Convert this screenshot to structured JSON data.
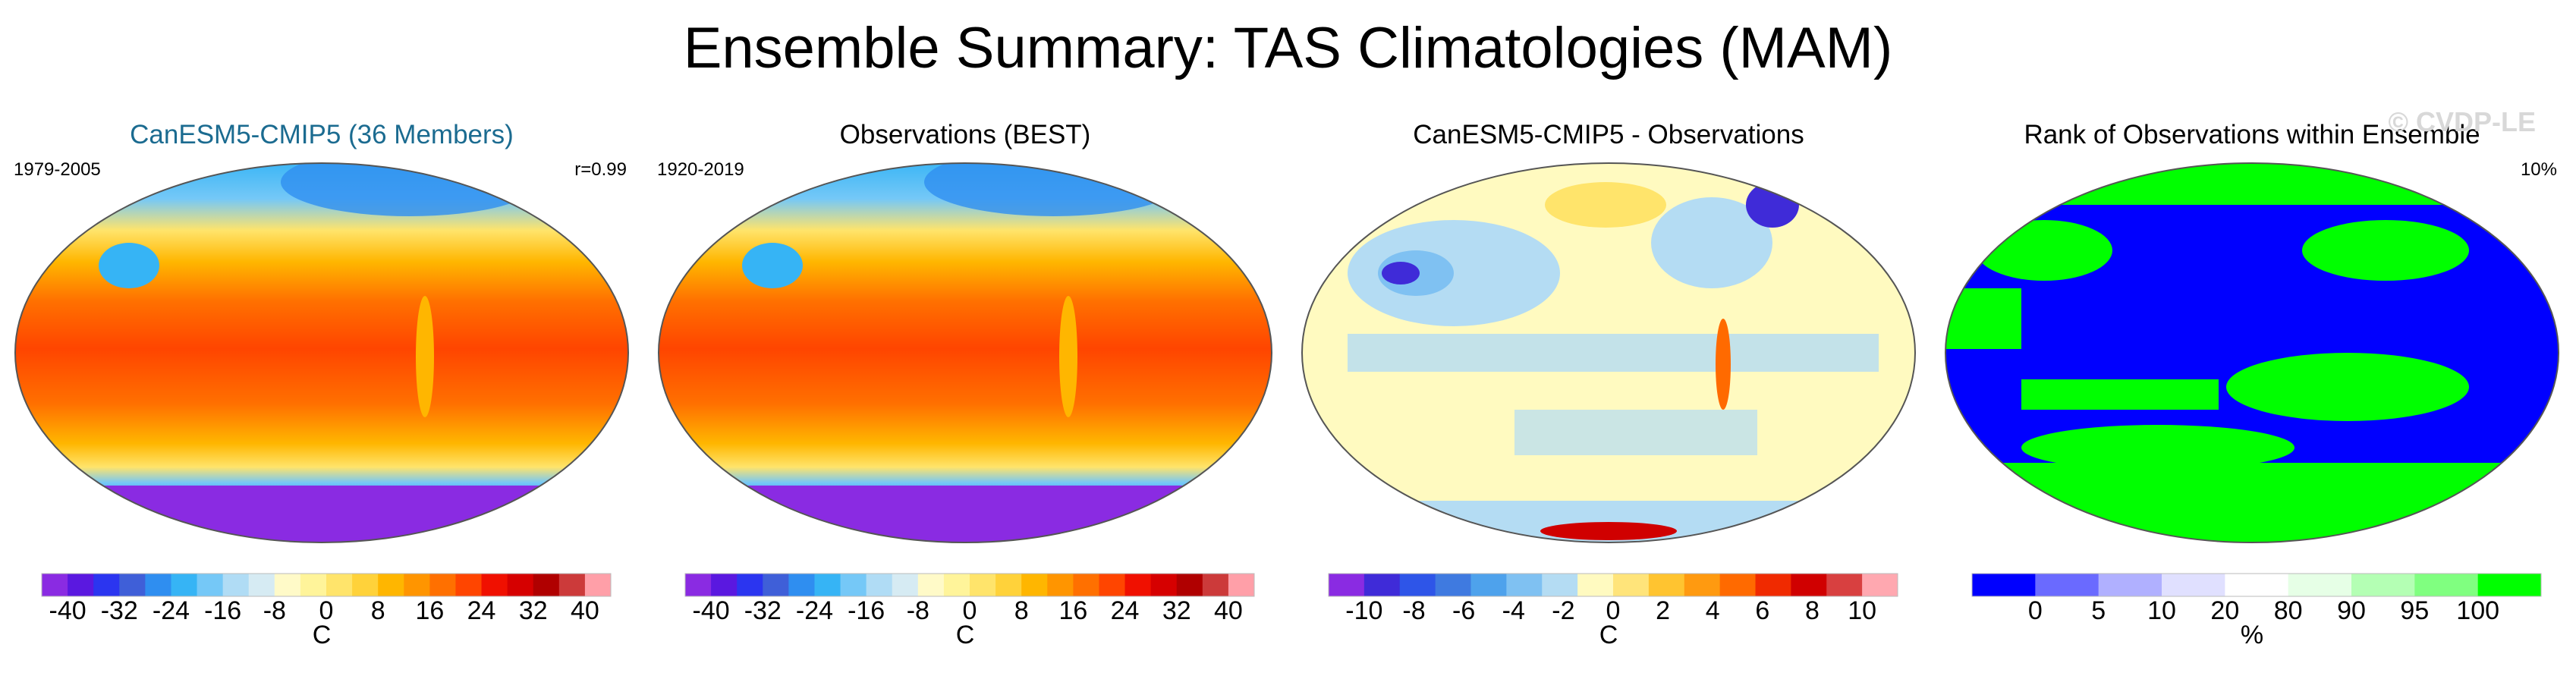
{
  "figure": {
    "title": "Ensemble Summary: TAS Climatologies (MAM)",
    "watermark": "© CVDP-LE",
    "colors": {
      "title_blue": "#1b6b90",
      "ocean_outline": "#555555"
    }
  },
  "chart_data": [
    {
      "type": "heatmap",
      "title": "CanESM5-CMIP5 (36 Members)",
      "period": "1979-2005",
      "stat": "r=0.99",
      "colorbar": {
        "label": "C",
        "ticks": [
          "-40",
          "-32",
          "-24",
          "-16",
          "-8",
          "0",
          "8",
          "16",
          "24",
          "32",
          "40"
        ],
        "range": [
          -40,
          40
        ],
        "colors": [
          "#8a2be2",
          "#5a18e0",
          "#2b35f0",
          "#3f5fd8",
          "#2f8ef0",
          "#36b4f5",
          "#75c8f7",
          "#b0dcf5",
          "#d6ebf3",
          "#fffac8",
          "#fff49a",
          "#ffe46b",
          "#ffd23a",
          "#ffb600",
          "#ff9500",
          "#ff7000",
          "#ff4500",
          "#f01000",
          "#d60000",
          "#b00000",
          "#cc3a3a",
          "#ff9fa8"
        ]
      }
    },
    {
      "type": "heatmap",
      "title": "Observations (BEST)",
      "period": "1920-2019",
      "colorbar": {
        "label": "C",
        "ticks": [
          "-40",
          "-32",
          "-24",
          "-16",
          "-8",
          "0",
          "8",
          "16",
          "24",
          "32",
          "40"
        ],
        "range": [
          -40,
          40
        ],
        "colors": [
          "#8a2be2",
          "#5a18e0",
          "#2b35f0",
          "#3f5fd8",
          "#2f8ef0",
          "#36b4f5",
          "#75c8f7",
          "#b0dcf5",
          "#d6ebf3",
          "#fffac8",
          "#fff49a",
          "#ffe46b",
          "#ffd23a",
          "#ffb600",
          "#ff9500",
          "#ff7000",
          "#ff4500",
          "#f01000",
          "#d60000",
          "#b00000",
          "#cc3a3a",
          "#ff9fa8"
        ]
      }
    },
    {
      "type": "heatmap",
      "title": "CanESM5-CMIP5 - Observations",
      "colorbar": {
        "label": "C",
        "ticks": [
          "-10",
          "-8",
          "-6",
          "-4",
          "-2",
          "0",
          "2",
          "4",
          "6",
          "8",
          "10"
        ],
        "range": [
          -10,
          10
        ],
        "colors": [
          "#8a2be2",
          "#3f2bd8",
          "#2e55e8",
          "#3f7ae0",
          "#4ea2ec",
          "#7fc1f2",
          "#b4dcf3",
          "#fffac0",
          "#ffe47a",
          "#ffc430",
          "#ff9a10",
          "#ff6a00",
          "#f02a00",
          "#d00000",
          "#d84040",
          "#ffa8b0"
        ]
      }
    },
    {
      "type": "heatmap",
      "title": "Rank of Observations within Ensemble",
      "stat": "10%",
      "colorbar": {
        "label": "%",
        "ticks": [
          "0",
          "5",
          "10",
          "20",
          "80",
          "90",
          "95",
          "100"
        ],
        "bins": [
          [
            -5,
            0
          ],
          [
            0,
            5
          ],
          [
            5,
            10
          ],
          [
            10,
            20
          ],
          [
            20,
            80
          ],
          [
            80,
            90
          ],
          [
            90,
            95
          ],
          [
            95,
            100
          ],
          [
            100,
            105
          ]
        ],
        "colors": [
          "#0000ff",
          "#6a6aff",
          "#b0b0ff",
          "#e0e0ff",
          "#ffffff",
          "#e6ffe6",
          "#b4ffb4",
          "#80ff80",
          "#00ff00"
        ]
      }
    }
  ]
}
